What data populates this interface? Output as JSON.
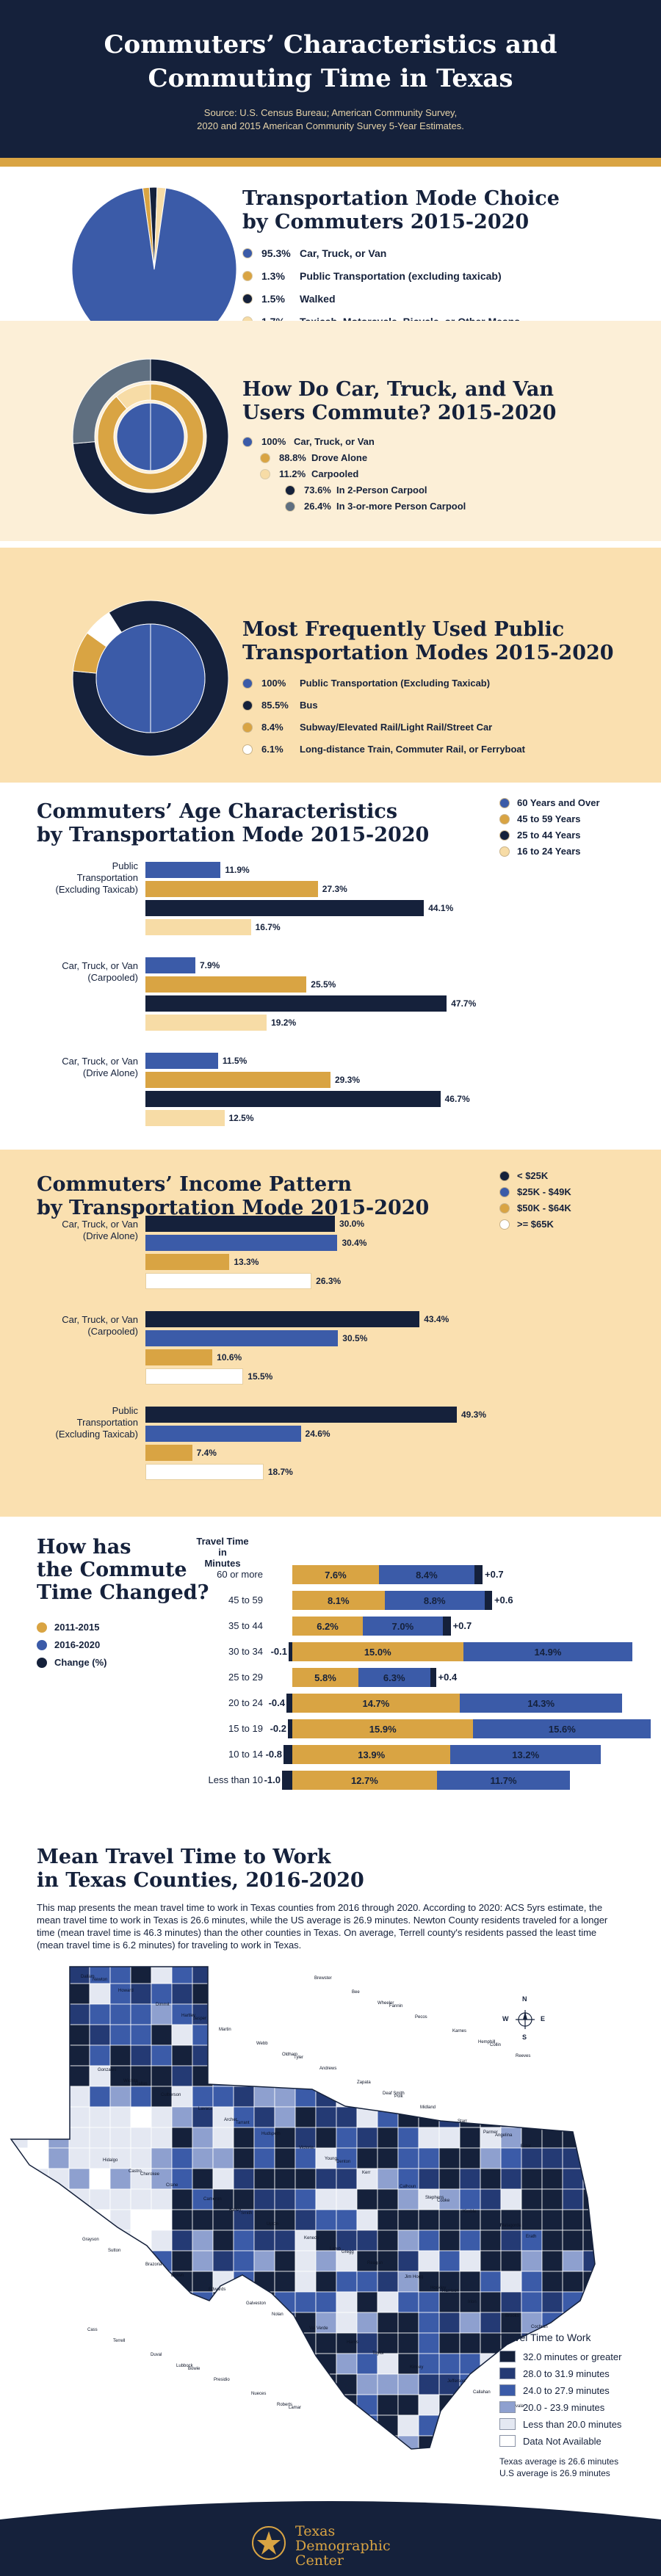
{
  "header": {
    "title_line1": "Commuters’ Characteristics and",
    "title_line2": "Commuting Time in Texas",
    "source_line1": "Source: U.S. Census Bureau; American Community Survey,",
    "source_line2": "2020 and 2015 American Community Survey 5-Year Estimates."
  },
  "colors": {
    "navy": "#15213b",
    "blue": "#3b5ba8",
    "gold": "#d9a443",
    "cream": "#f7dca6",
    "light_bg": "#fcefd7",
    "section_bg": "#fae0b0",
    "slate": "#5f6f80"
  },
  "chart_data": [
    {
      "type": "pie",
      "title_line1": "Transportation Mode Choice",
      "title_line2": "by Commuters 2015-2020",
      "slices": [
        {
          "value": 95.3,
          "pct_label": "95.3%",
          "label": "Car, Truck, or Van",
          "color": "#3b5ba8"
        },
        {
          "value": 1.3,
          "pct_label": "1.3%",
          "label": "Public Transportation (excluding taxicab)",
          "color": "#d9a443"
        },
        {
          "value": 1.5,
          "pct_label": "1.5%",
          "label": "Walked",
          "color": "#15213b"
        },
        {
          "value": 1.7,
          "pct_label": "1.7%",
          "label": "Taxicab, Motorcycle, Bicycle, or Other Means",
          "color": "#f7dca6"
        }
      ]
    },
    {
      "type": "pie",
      "title_line1": "How Do Car, Truck, and Van",
      "title_line2": "Users Commute? 2015-2020",
      "legend": [
        {
          "pct_label": "100%",
          "label": "Car, Truck, or Van",
          "color": "#3b5ba8",
          "level": 0
        },
        {
          "pct_label": "88.8%",
          "label": "Drove Alone",
          "color": "#d9a443",
          "level": 1
        },
        {
          "pct_label": "11.2%",
          "label": "Carpooled",
          "color": "#f7dca6",
          "level": 1
        },
        {
          "pct_label": "73.6%",
          "label": "In 2-Person Carpool",
          "color": "#15213b",
          "level": 2
        },
        {
          "pct_label": "26.4%",
          "label": "In 3-or-more Person Carpool",
          "color": "#5f6f80",
          "level": 2
        }
      ],
      "rings": {
        "inner": [
          {
            "value": 100,
            "color": "#3b5ba8"
          }
        ],
        "middle": [
          {
            "value": 88.8,
            "color": "#d9a443"
          },
          {
            "value": 11.2,
            "color": "#f7dca6"
          }
        ],
        "outer": [
          {
            "value": 73.6,
            "color": "#15213b"
          },
          {
            "value": 26.4,
            "color": "#5f6f80"
          }
        ]
      }
    },
    {
      "type": "pie",
      "title_line1": "Most Frequently Used Public",
      "title_line2": "Transportation Modes 2015-2020",
      "legend": [
        {
          "pct_label": "100%",
          "label": "Public Transportation (Excluding Taxicab)",
          "color": "#3b5ba8"
        },
        {
          "pct_label": "85.5%",
          "label": "Bus",
          "color": "#15213b"
        },
        {
          "pct_label": "8.4%",
          "label": "Subway/Elevated Rail/Light Rail/Street Car",
          "color": "#d9a443"
        },
        {
          "pct_label": "6.1%",
          "label": "Long-distance Train, Commuter Rail, or Ferryboat",
          "color": "#ffffff"
        }
      ],
      "rings": {
        "inner": [
          {
            "value": 100,
            "color": "#3b5ba8"
          }
        ],
        "outer": [
          {
            "value": 85.5,
            "color": "#15213b"
          },
          {
            "value": 8.4,
            "color": "#d9a443"
          },
          {
            "value": 6.1,
            "color": "#ffffff"
          }
        ]
      }
    },
    {
      "type": "bar",
      "title_line1": "Commuters’ Age Characteristics",
      "title_line2": "by Transportation Mode 2015-2020",
      "legend": [
        {
          "name": "60 Years and Over",
          "color": "#3b5ba8"
        },
        {
          "name": "45 to 59 Years",
          "color": "#d9a443"
        },
        {
          "name": "25 to 44 Years",
          "color": "#15213b"
        },
        {
          "name": "16 to 24 Years",
          "color": "#f7dca6"
        }
      ],
      "groups": [
        {
          "label_lines": [
            "Public",
            "Transportation",
            "(Excluding Taxicab)"
          ],
          "values": [
            11.9,
            27.3,
            44.1,
            16.7
          ],
          "labels": [
            "11.9%",
            "27.3%",
            "44.1%",
            "16.7%"
          ]
        },
        {
          "label_lines": [
            "Car, Truck, or Van",
            "(Carpooled)"
          ],
          "values": [
            7.9,
            25.5,
            47.7,
            19.2
          ],
          "labels": [
            "7.9%",
            "25.5%",
            "47.7%",
            "19.2%"
          ]
        },
        {
          "label_lines": [
            "Car, Truck, or Van",
            "(Drive Alone)"
          ],
          "values": [
            11.5,
            29.3,
            46.7,
            12.5
          ],
          "labels": [
            "11.5%",
            "29.3%",
            "46.7%",
            "12.5%"
          ]
        }
      ],
      "colors": [
        "#3b5ba8",
        "#d9a443",
        "#15213b",
        "#f7dca6"
      ]
    },
    {
      "type": "bar",
      "title_line1": "Commuters’ Income Pattern",
      "title_line2": "by Transportation Mode 2015-2020",
      "legend": [
        {
          "name": "< $25K",
          "color": "#15213b"
        },
        {
          "name": "$25K - $49K",
          "color": "#3b5ba8"
        },
        {
          "name": "$50K - $64K",
          "color": "#d9a443"
        },
        {
          "name": ">= $65K",
          "color": "#ffffff"
        }
      ],
      "groups": [
        {
          "label_lines": [
            "Car, Truck, or Van",
            "(Drive Alone)"
          ],
          "values": [
            30.0,
            30.4,
            13.3,
            26.3
          ],
          "labels": [
            "30.0%",
            "30.4%",
            "13.3%",
            "26.3%"
          ]
        },
        {
          "label_lines": [
            "Car, Truck, or Van",
            "(Carpooled)"
          ],
          "values": [
            43.4,
            30.5,
            10.6,
            15.5
          ],
          "labels": [
            "43.4%",
            "30.5%",
            "10.6%",
            "15.5%"
          ]
        },
        {
          "label_lines": [
            "Public",
            "Transportation",
            "(Excluding Taxicab)"
          ],
          "values": [
            49.3,
            24.6,
            7.4,
            18.7
          ],
          "labels": [
            "49.3%",
            "24.6%",
            "7.4%",
            "18.7%"
          ]
        }
      ],
      "colors": [
        "#15213b",
        "#3b5ba8",
        "#d9a443",
        "#ffffff"
      ]
    },
    {
      "type": "bar",
      "title_line1": "How has",
      "title_line2": "the Commute",
      "title_line3": "Time Changed?",
      "axis_label_lines": [
        "Travel Time",
        "in",
        "Minutes"
      ],
      "legend": [
        {
          "name": "2011-2015",
          "color": "#d9a443"
        },
        {
          "name": "2016-2020",
          "color": "#3b5ba8"
        },
        {
          "name": "Change (%)",
          "color": "#15213b"
        }
      ],
      "rows": [
        {
          "label": "60 or more",
          "v2015": 7.6,
          "v2020": 8.4,
          "change": 0.7,
          "l2015": "7.6%",
          "l2020": "8.4%",
          "lchange": "+0.7"
        },
        {
          "label": "45 to 59",
          "v2015": 8.1,
          "v2020": 8.8,
          "change": 0.6,
          "l2015": "8.1%",
          "l2020": "8.8%",
          "lchange": "+0.6"
        },
        {
          "label": "35 to 44",
          "v2015": 6.2,
          "v2020": 7.0,
          "change": 0.7,
          "l2015": "6.2%",
          "l2020": "7.0%",
          "lchange": "+0.7"
        },
        {
          "label": "30 to 34",
          "v2015": 15.0,
          "v2020": 14.9,
          "change": -0.1,
          "l2015": "15.0%",
          "l2020": "14.9%",
          "lchange": "-0.1"
        },
        {
          "label": "25 to 29",
          "v2015": 5.8,
          "v2020": 6.3,
          "change": 0.4,
          "l2015": "5.8%",
          "l2020": "6.3%",
          "lchange": "+0.4"
        },
        {
          "label": "20 to 24",
          "v2015": 14.7,
          "v2020": 14.3,
          "change": -0.4,
          "l2015": "14.7%",
          "l2020": "14.3%",
          "lchange": "-0.4"
        },
        {
          "label": "15 to 19",
          "v2015": 15.9,
          "v2020": 15.6,
          "change": -0.2,
          "l2015": "15.9%",
          "l2020": "15.6%",
          "lchange": "-0.2"
        },
        {
          "label": "10 to 14",
          "v2015": 13.9,
          "v2020": 13.2,
          "change": -0.8,
          "l2015": "13.9%",
          "l2020": "13.2%",
          "lchange": "-0.8"
        },
        {
          "label": "Less than 10",
          "v2015": 12.7,
          "v2020": 11.7,
          "change": -1.0,
          "l2015": "12.7%",
          "l2020": "11.7%",
          "lchange": "-1.0"
        }
      ]
    }
  ],
  "map_section": {
    "title_line1": "Mean Travel Time to Work",
    "title_line2": "in Texas Counties, 2016-2020",
    "description": "This map presents the mean travel time to work in Texas counties from 2016 through 2020. According to 2020: ACS 5yrs estimate, the mean travel time to work in Texas is 26.6 minutes, while the US average is 26.9 minutes. Newton County residents traveled for a longer time (mean travel time is 46.3 minutes) than the other counties in Texas. On average, Terrell county's residents passed the least time (mean travel time is 6.2 minutes) for traveling to work in Texas.",
    "legend_title": "Travel Time to Work",
    "legend": [
      {
        "label": "32.0 minutes or greater",
        "color": "#15213b"
      },
      {
        "label": "28.0 to 31.9 minutes",
        "color": "#243a74"
      },
      {
        "label": "24.0 to 27.9 minutes",
        "color": "#3b5ba8"
      },
      {
        "label": "20.0 - 23.9 minutes",
        "color": "#8ea0cf"
      },
      {
        "label": "Less than 20.0 minutes",
        "color": "#e4e8f2"
      },
      {
        "label": "Data Not Available",
        "color": "#ffffff"
      }
    ],
    "note_line1": "Texas average is 26.6 minutes",
    "note_line2": "U.S average is 26.9 minutes",
    "compass": {
      "n": "N",
      "s": "S",
      "e": "E",
      "w": "W"
    },
    "county_labels": [
      "Dallam",
      "Hartley",
      "Oldham",
      "Deaf Smith",
      "Parmer",
      "Castro",
      "Bailey",
      "Lamb",
      "Hockley",
      "Cochran",
      "Lubbock",
      "Roberts",
      "Wheeler",
      "Hemphill",
      "Wichita",
      "Archer",
      "Young",
      "Stephens",
      "Erath",
      "Brown",
      "Nolan",
      "Taylor",
      "Callahan",
      "Howard",
      "Martin",
      "Andrews",
      "Midland",
      "Ector",
      "Crane",
      "Upton",
      "Reagan",
      "Irion",
      "Terrell",
      "Presidio",
      "Brewster",
      "Pecos",
      "Reeves",
      "Culberson",
      "Hudspeth",
      "Kerr",
      "Kimble",
      "Sutton",
      "Edwards",
      "Val Verde",
      "Kinney",
      "Zavala",
      "Dimmit",
      "Webb",
      "Zapata",
      "Starr",
      "Hidalgo",
      "Cameron",
      "Kenedy",
      "Jim Hogg",
      "Brooks",
      "Duval",
      "Nueces",
      "Bee",
      "Karnes",
      "Gonzales",
      "Lavaca",
      "Victoria",
      "Calhoun",
      "Matagorda",
      "Brazoria",
      "Galveston",
      "Harris",
      "Jefferson",
      "Newton",
      "Jasper",
      "Tyler",
      "Polk",
      "Angelina",
      "Cherokee",
      "Smith",
      "Gregg",
      "Harrison",
      "Cass",
      "Bowie",
      "Lamar",
      "Fannin",
      "Collin",
      "Dallas",
      "Tarrant",
      "Denton",
      "Cooke",
      "Grayson"
    ]
  },
  "footer": {
    "org_line1": "Texas",
    "org_line2": "Demographic",
    "org_line3": "Center"
  }
}
